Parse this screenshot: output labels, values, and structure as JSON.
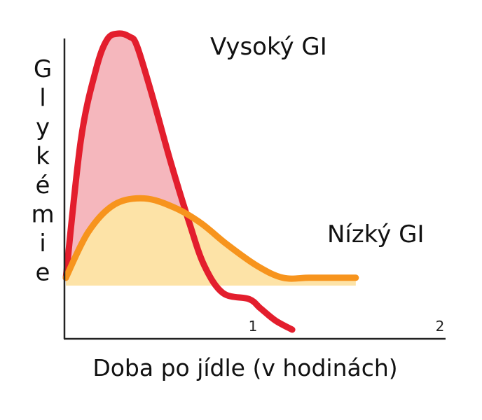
{
  "chart_data": {
    "type": "line",
    "xlabel": "Doba po jídle (v hodinách)",
    "ylabel": "Glykémie",
    "x_ticks": [
      {
        "value": 1,
        "label": "1"
      },
      {
        "value": 2,
        "label": "2"
      }
    ],
    "xlim": [
      0,
      2.0
    ],
    "ylim": [
      0,
      100
    ],
    "grid": false,
    "legend": "none",
    "series": [
      {
        "name": "Vysoký GI",
        "color": "#e31e2d",
        "fill": "#f5b7bd",
        "points": [
          [
            0.0,
            20
          ],
          [
            0.08,
            65
          ],
          [
            0.16,
            88
          ],
          [
            0.22,
            98
          ],
          [
            0.28,
            100
          ],
          [
            0.34,
            99
          ],
          [
            0.38,
            96
          ],
          [
            0.46,
            80
          ],
          [
            0.56,
            58
          ],
          [
            0.66,
            38
          ],
          [
            0.74,
            24
          ],
          [
            0.84,
            15
          ],
          [
            0.98,
            13
          ],
          [
            1.04,
            10
          ],
          [
            1.12,
            6
          ],
          [
            1.21,
            3
          ]
        ]
      },
      {
        "name": "Nízký GI",
        "color": "#f7941d",
        "fill": "#fde3a7",
        "points": [
          [
            0.0,
            20
          ],
          [
            0.12,
            35
          ],
          [
            0.26,
            44
          ],
          [
            0.42,
            46
          ],
          [
            0.58,
            43
          ],
          [
            0.72,
            38
          ],
          [
            0.86,
            31
          ],
          [
            1.02,
            24
          ],
          [
            1.16,
            20
          ],
          [
            1.3,
            20
          ],
          [
            1.44,
            20
          ],
          [
            1.55,
            20
          ]
        ]
      }
    ]
  }
}
